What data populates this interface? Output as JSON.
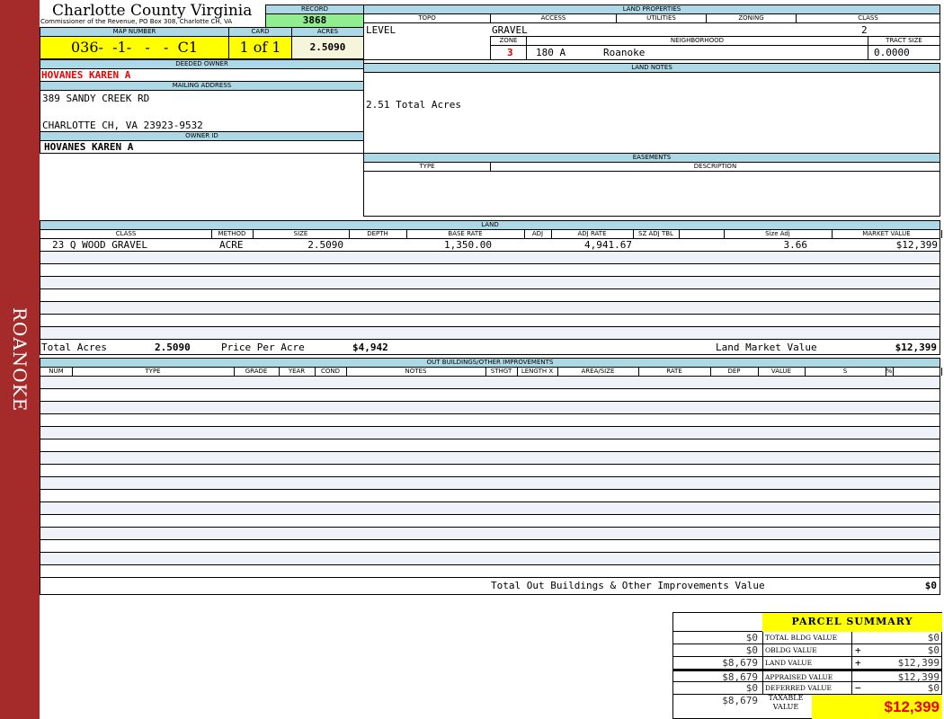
{
  "sidebar": {
    "label": "ROANOKE",
    "color": "#a52a2a"
  },
  "header": {
    "title": "Charlotte County Virginia",
    "subtitle": "Commissioner of the Revenue, PO Box 308, Charlotte CH, VA",
    "record_label": "RECORD",
    "record": "3868"
  },
  "parcel": {
    "map_number_label": "MAP NUMBER",
    "map_number": "036-  -1-   -   -  C1",
    "card_label": "CARD",
    "card": "1 of 1",
    "acres_label": "ACRES",
    "acres": "2.5090"
  },
  "owner": {
    "deeded_label": "DEEDED OWNER",
    "deeded": "HOVANES KAREN A",
    "mailing_label": "MAILING ADDRESS",
    "address1": "389 SANDY CREEK RD",
    "address2": "CHARLOTTE CH, VA 23923-9532",
    "owner_id_label": "OWNER ID",
    "owner_id": "HOVANES KAREN A"
  },
  "land_properties": {
    "label": "LAND PROPERTIES",
    "topo_label": "TOPO",
    "access_label": "ACCESS",
    "utilities_label": "UTILITIES",
    "zoning_label": "ZONING",
    "class_label": "CLASS",
    "topo": "LEVEL",
    "access": "GRAVEL",
    "class": "2",
    "zone_label": "ZONE",
    "neighborhood_label": "NEIGHBORHOOD",
    "tract_label": "TRACT SIZE",
    "zone": "3",
    "neighborhood_code": "180 A",
    "neighborhood": "Roanoke",
    "tract": "0.0000"
  },
  "land_notes": {
    "label": "LAND NOTES",
    "text": "2.51 Total Acres"
  },
  "easements": {
    "label": "EASEMENTS",
    "type_label": "TYPE",
    "description_label": "DESCRIPTION"
  },
  "land": {
    "label": "LAND",
    "columns": [
      "CLASS",
      "METHOD",
      "SIZE",
      "DEPTH",
      "BASE RATE",
      "ADJ",
      "ADJ RATE",
      "SZ ADJ TBL",
      "",
      "Size Adj",
      "MARKET VALUE"
    ],
    "rows": [
      [
        "23 Q WOOD GRAVEL",
        "ACRE",
        "2.5090",
        "",
        "1,350.00",
        "",
        "4,941.67",
        "",
        "",
        "3.66",
        "$12,399"
      ]
    ],
    "total_acres_label": "Total Acres",
    "total_acres": "2.5090",
    "price_label": "Price Per Acre",
    "price": "$4,942",
    "market_label": "Land Market Value",
    "market": "$12,399"
  },
  "outbuildings": {
    "label": "OUT BUILDINGS/OTHER IMPROVEMENTS",
    "columns": [
      "NUM",
      "TYPE",
      "GRADE",
      "YEAR",
      "COND",
      "NOTES",
      "STHGT",
      "LENGTH X WIDTH",
      "AREA/SIZE",
      "RATE",
      "DEP",
      "VALUE",
      "S",
      "% COMP"
    ],
    "total_label": "Total Out Buildings & Other Improvements Value",
    "total": "$0"
  },
  "summary": {
    "title": "PARCEL SUMMARY",
    "rows": [
      {
        "left": "$0",
        "label": "TOTAL BLDG VALUE",
        "op": "",
        "value": "$0"
      },
      {
        "left": "$0",
        "label": "OBLDG VALUE",
        "op": "+",
        "value": "$0"
      },
      {
        "left": "$8,679",
        "label": "LAND VALUE",
        "op": "+",
        "value": "$12,399"
      },
      {
        "left": "$8,679",
        "label": "APPRAISED VALUE",
        "op": "",
        "value": "$12,399"
      },
      {
        "left": "$0",
        "label": "DEFERRED VALUE",
        "op": "−",
        "value": "$0"
      }
    ],
    "taxable_left": "$8,679",
    "taxable_label": "TAXABLE VALUE",
    "taxable": "$12,399"
  }
}
